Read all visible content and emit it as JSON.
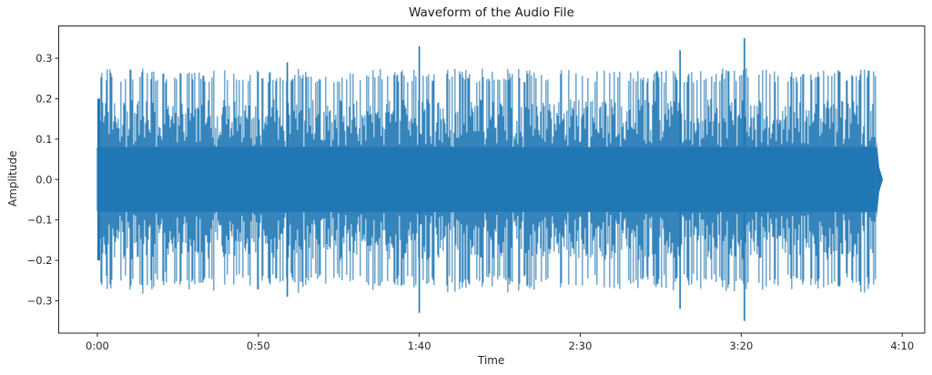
{
  "chart_data": {
    "type": "line",
    "title": "Waveform of the Audio File",
    "xlabel": "Time",
    "ylabel": "Amplitude",
    "x_ticks": [
      "0:00",
      "0:50",
      "1:40",
      "2:30",
      "3:20",
      "4:10"
    ],
    "x_tick_seconds": [
      0,
      50,
      100,
      150,
      200,
      250
    ],
    "y_ticks": [
      0.3,
      0.2,
      0.1,
      0.0,
      -0.1,
      -0.2,
      -0.3
    ],
    "y_tick_labels": [
      "0.3",
      "0.2",
      "0.1",
      "0.0",
      "−0.1",
      "−0.2",
      "−0.3"
    ],
    "xlim": [
      -12,
      257
    ],
    "ylim": [
      -0.38,
      0.38
    ],
    "grid": false,
    "legend": null,
    "color": "#1f77b4",
    "duration_seconds": 244,
    "envelope": {
      "core_amplitude": 0.08,
      "typical_peak": 0.26,
      "sustained_band": 0.17,
      "fade_out_start_seconds": 242
    },
    "notable_peaks": [
      {
        "time_seconds": 59,
        "value": 0.29,
        "min": -0.29
      },
      {
        "time_seconds": 100,
        "value": 0.33,
        "min": -0.33
      },
      {
        "time_seconds": 181,
        "value": 0.32,
        "min": -0.32
      },
      {
        "time_seconds": 201,
        "value": 0.35,
        "min": -0.35
      }
    ]
  }
}
